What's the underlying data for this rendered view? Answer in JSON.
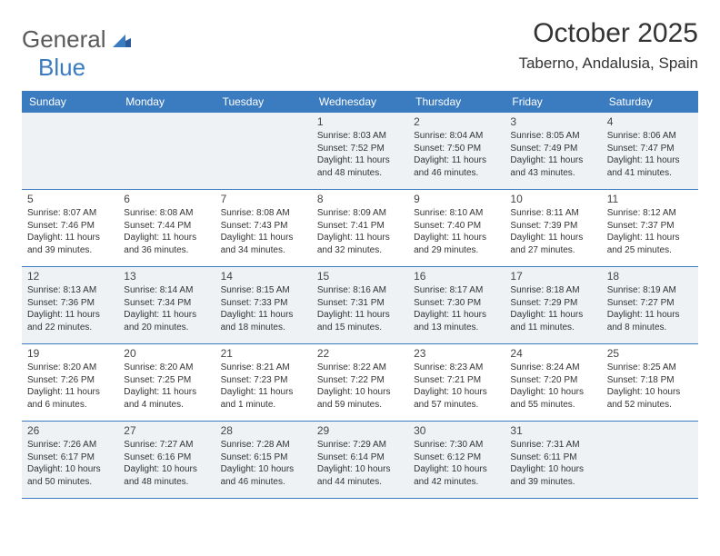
{
  "logo": {
    "textGen": "General",
    "textBlue": "Blue"
  },
  "title": {
    "month": "October 2025",
    "location": "Taberno, Andalusia, Spain"
  },
  "weekdays": [
    "Sunday",
    "Monday",
    "Tuesday",
    "Wednesday",
    "Thursday",
    "Friday",
    "Saturday"
  ],
  "colors": {
    "headerBg": "#3b7bbf",
    "shadedBg": "#eef2f5",
    "rowBorder": "#3b7bbf"
  },
  "weeks": [
    [
      {
        "num": "",
        "shaded": true
      },
      {
        "num": "",
        "shaded": true
      },
      {
        "num": "",
        "shaded": true
      },
      {
        "num": "1",
        "shaded": true,
        "sunrise": "Sunrise: 8:03 AM",
        "sunset": "Sunset: 7:52 PM",
        "daylight": "Daylight: 11 hours and 48 minutes."
      },
      {
        "num": "2",
        "shaded": true,
        "sunrise": "Sunrise: 8:04 AM",
        "sunset": "Sunset: 7:50 PM",
        "daylight": "Daylight: 11 hours and 46 minutes."
      },
      {
        "num": "3",
        "shaded": true,
        "sunrise": "Sunrise: 8:05 AM",
        "sunset": "Sunset: 7:49 PM",
        "daylight": "Daylight: 11 hours and 43 minutes."
      },
      {
        "num": "4",
        "shaded": true,
        "sunrise": "Sunrise: 8:06 AM",
        "sunset": "Sunset: 7:47 PM",
        "daylight": "Daylight: 11 hours and 41 minutes."
      }
    ],
    [
      {
        "num": "5",
        "sunrise": "Sunrise: 8:07 AM",
        "sunset": "Sunset: 7:46 PM",
        "daylight": "Daylight: 11 hours and 39 minutes."
      },
      {
        "num": "6",
        "sunrise": "Sunrise: 8:08 AM",
        "sunset": "Sunset: 7:44 PM",
        "daylight": "Daylight: 11 hours and 36 minutes."
      },
      {
        "num": "7",
        "sunrise": "Sunrise: 8:08 AM",
        "sunset": "Sunset: 7:43 PM",
        "daylight": "Daylight: 11 hours and 34 minutes."
      },
      {
        "num": "8",
        "sunrise": "Sunrise: 8:09 AM",
        "sunset": "Sunset: 7:41 PM",
        "daylight": "Daylight: 11 hours and 32 minutes."
      },
      {
        "num": "9",
        "sunrise": "Sunrise: 8:10 AM",
        "sunset": "Sunset: 7:40 PM",
        "daylight": "Daylight: 11 hours and 29 minutes."
      },
      {
        "num": "10",
        "sunrise": "Sunrise: 8:11 AM",
        "sunset": "Sunset: 7:39 PM",
        "daylight": "Daylight: 11 hours and 27 minutes."
      },
      {
        "num": "11",
        "sunrise": "Sunrise: 8:12 AM",
        "sunset": "Sunset: 7:37 PM",
        "daylight": "Daylight: 11 hours and 25 minutes."
      }
    ],
    [
      {
        "num": "12",
        "shaded": true,
        "sunrise": "Sunrise: 8:13 AM",
        "sunset": "Sunset: 7:36 PM",
        "daylight": "Daylight: 11 hours and 22 minutes."
      },
      {
        "num": "13",
        "shaded": true,
        "sunrise": "Sunrise: 8:14 AM",
        "sunset": "Sunset: 7:34 PM",
        "daylight": "Daylight: 11 hours and 20 minutes."
      },
      {
        "num": "14",
        "shaded": true,
        "sunrise": "Sunrise: 8:15 AM",
        "sunset": "Sunset: 7:33 PM",
        "daylight": "Daylight: 11 hours and 18 minutes."
      },
      {
        "num": "15",
        "shaded": true,
        "sunrise": "Sunrise: 8:16 AM",
        "sunset": "Sunset: 7:31 PM",
        "daylight": "Daylight: 11 hours and 15 minutes."
      },
      {
        "num": "16",
        "shaded": true,
        "sunrise": "Sunrise: 8:17 AM",
        "sunset": "Sunset: 7:30 PM",
        "daylight": "Daylight: 11 hours and 13 minutes."
      },
      {
        "num": "17",
        "shaded": true,
        "sunrise": "Sunrise: 8:18 AM",
        "sunset": "Sunset: 7:29 PM",
        "daylight": "Daylight: 11 hours and 11 minutes."
      },
      {
        "num": "18",
        "shaded": true,
        "sunrise": "Sunrise: 8:19 AM",
        "sunset": "Sunset: 7:27 PM",
        "daylight": "Daylight: 11 hours and 8 minutes."
      }
    ],
    [
      {
        "num": "19",
        "sunrise": "Sunrise: 8:20 AM",
        "sunset": "Sunset: 7:26 PM",
        "daylight": "Daylight: 11 hours and 6 minutes."
      },
      {
        "num": "20",
        "sunrise": "Sunrise: 8:20 AM",
        "sunset": "Sunset: 7:25 PM",
        "daylight": "Daylight: 11 hours and 4 minutes."
      },
      {
        "num": "21",
        "sunrise": "Sunrise: 8:21 AM",
        "sunset": "Sunset: 7:23 PM",
        "daylight": "Daylight: 11 hours and 1 minute."
      },
      {
        "num": "22",
        "sunrise": "Sunrise: 8:22 AM",
        "sunset": "Sunset: 7:22 PM",
        "daylight": "Daylight: 10 hours and 59 minutes."
      },
      {
        "num": "23",
        "sunrise": "Sunrise: 8:23 AM",
        "sunset": "Sunset: 7:21 PM",
        "daylight": "Daylight: 10 hours and 57 minutes."
      },
      {
        "num": "24",
        "sunrise": "Sunrise: 8:24 AM",
        "sunset": "Sunset: 7:20 PM",
        "daylight": "Daylight: 10 hours and 55 minutes."
      },
      {
        "num": "25",
        "sunrise": "Sunrise: 8:25 AM",
        "sunset": "Sunset: 7:18 PM",
        "daylight": "Daylight: 10 hours and 52 minutes."
      }
    ],
    [
      {
        "num": "26",
        "shaded": true,
        "sunrise": "Sunrise: 7:26 AM",
        "sunset": "Sunset: 6:17 PM",
        "daylight": "Daylight: 10 hours and 50 minutes."
      },
      {
        "num": "27",
        "shaded": true,
        "sunrise": "Sunrise: 7:27 AM",
        "sunset": "Sunset: 6:16 PM",
        "daylight": "Daylight: 10 hours and 48 minutes."
      },
      {
        "num": "28",
        "shaded": true,
        "sunrise": "Sunrise: 7:28 AM",
        "sunset": "Sunset: 6:15 PM",
        "daylight": "Daylight: 10 hours and 46 minutes."
      },
      {
        "num": "29",
        "shaded": true,
        "sunrise": "Sunrise: 7:29 AM",
        "sunset": "Sunset: 6:14 PM",
        "daylight": "Daylight: 10 hours and 44 minutes."
      },
      {
        "num": "30",
        "shaded": true,
        "sunrise": "Sunrise: 7:30 AM",
        "sunset": "Sunset: 6:12 PM",
        "daylight": "Daylight: 10 hours and 42 minutes."
      },
      {
        "num": "31",
        "shaded": true,
        "sunrise": "Sunrise: 7:31 AM",
        "sunset": "Sunset: 6:11 PM",
        "daylight": "Daylight: 10 hours and 39 minutes."
      },
      {
        "num": "",
        "shaded": true
      }
    ]
  ]
}
